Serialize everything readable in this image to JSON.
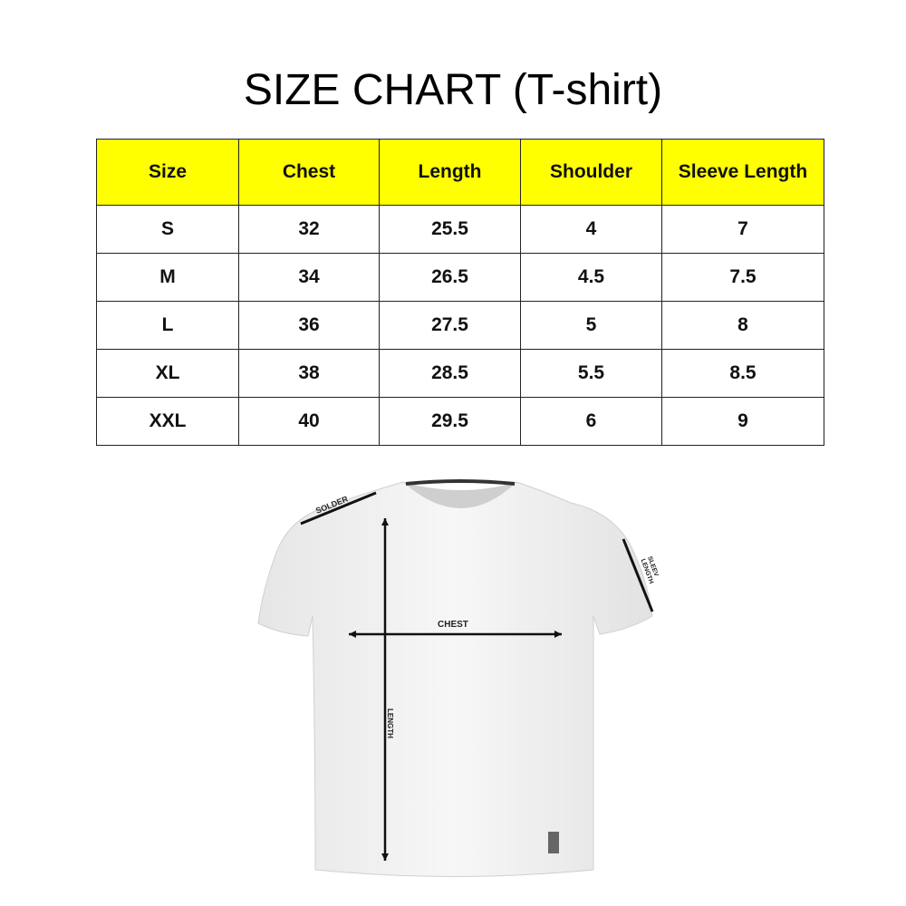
{
  "title": "SIZE CHART (T-shirt)",
  "chart_data": {
    "type": "table",
    "title": "SIZE CHART (T-shirt)",
    "columns": [
      "Size",
      "Chest",
      "Length",
      "Shoulder",
      "Sleeve Length"
    ],
    "rows": [
      [
        "S",
        "32",
        "25.5",
        "4",
        "7"
      ],
      [
        "M",
        "34",
        "26.5",
        "4.5",
        "7.5"
      ],
      [
        "L",
        "36",
        "27.5",
        "5",
        "8"
      ],
      [
        "XL",
        "38",
        "28.5",
        "5.5",
        "8.5"
      ],
      [
        "XXL",
        "40",
        "29.5",
        "6",
        "9"
      ]
    ],
    "header_color": "#ffff00"
  },
  "diagram": {
    "shoulder_label": "SOLDER",
    "sleeve_label_line1": "SLEEV",
    "sleeve_label_line2": "LENGTH",
    "chest_label": "CHEST",
    "length_label": "LENGTH"
  }
}
